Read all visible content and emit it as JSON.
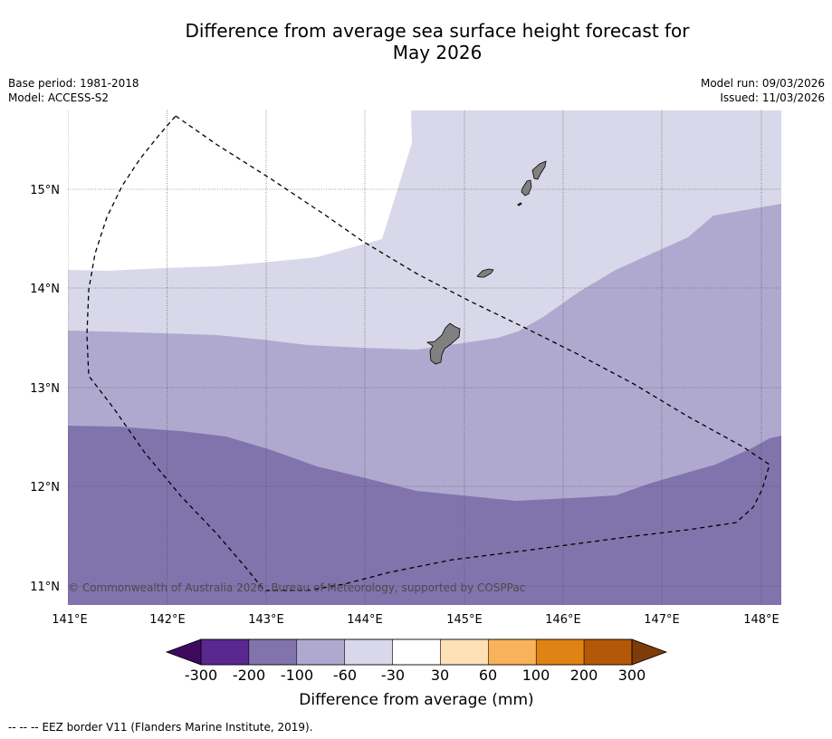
{
  "header": {
    "title_line1": "Difference from average sea surface height forecast for",
    "title_line2": "May 2026",
    "base_period": "Base period: 1981-2018",
    "model": "Model: ACCESS-S2",
    "model_run": "Model run: 09/03/2026",
    "issued": "Issued: 11/03/2026"
  },
  "map": {
    "lon_ticks": [
      "141°E",
      "142°E",
      "143°E",
      "144°E",
      "145°E",
      "146°E",
      "147°E",
      "148°E"
    ],
    "lat_ticks": [
      "15°N",
      "14°N",
      "13°N",
      "12°N",
      "11°N"
    ],
    "copyright": "© Commonwealth of Australia 2026, Bureau of Meteorology, supported by COSPPac",
    "colors": {
      "band_minus_30_to_30": "#ffffff",
      "band_minus_60_to_minus_30": "#d8d8ea",
      "band_minus_100_to_minus_60": "#b0a9cf",
      "band_minus_200_to_minus_100": "#8174ad",
      "land": "#808080",
      "eez_border": "#000000"
    }
  },
  "colorbar": {
    "ticks": [
      "-300",
      "-200",
      "-100",
      "-60",
      "-30",
      "30",
      "60",
      "100",
      "200",
      "300"
    ],
    "colors": [
      "#5a2690",
      "#8174ad",
      "#b0a9cf",
      "#d8d8ea",
      "#ffffff",
      "#fde0b5",
      "#f9b15a",
      "#e08214",
      "#b35806"
    ],
    "under_color": "#3f0a5e",
    "over_color": "#7f3b08",
    "label": "Difference from average (mm)"
  },
  "footer": {
    "legend_symbol": "-- -- --",
    "legend_text": "EEZ border V11 (Flanders Marine Institute, 2019)."
  }
}
